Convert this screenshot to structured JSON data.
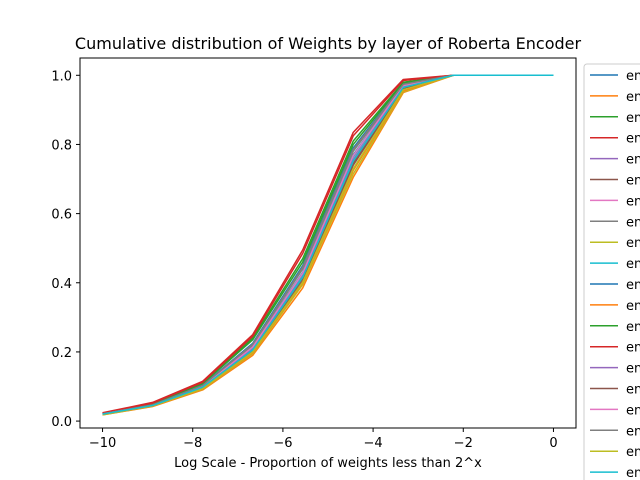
{
  "chart_data": {
    "type": "line",
    "title": "Cumulative distribution of Weights by layer of Roberta Encoder",
    "xlabel": "Log Scale - Proportion of weights less than 2^x",
    "ylabel": "",
    "xlim": [
      -10.5,
      0.5
    ],
    "ylim": [
      -0.02,
      1.05
    ],
    "xticks": [
      -10,
      -8,
      -6,
      -4,
      -2,
      0
    ],
    "yticks": [
      0.0,
      0.2,
      0.4,
      0.6,
      0.8,
      1.0
    ],
    "x": [
      -10,
      -8.89,
      -7.78,
      -6.67,
      -5.56,
      -4.44,
      -3.33,
      -2.22,
      -1.11,
      0
    ],
    "grid": false,
    "legend_position": "right (clipped)",
    "series": [
      {
        "name": "en",
        "color": "#1f77b4",
        "values": [
          0.02,
          0.046,
          0.1,
          0.215,
          0.43,
          0.77,
          0.97,
          1.0,
          1.0,
          1.0
        ]
      },
      {
        "name": "en",
        "color": "#ff7f0e",
        "values": [
          0.018,
          0.042,
          0.09,
          0.19,
          0.385,
          0.705,
          0.95,
          1.0,
          1.0,
          1.0
        ]
      },
      {
        "name": "en",
        "color": "#2ca02c",
        "values": [
          0.022,
          0.05,
          0.11,
          0.24,
          0.47,
          0.81,
          0.98,
          1.0,
          1.0,
          1.0
        ]
      },
      {
        "name": "en",
        "color": "#d62728",
        "values": [
          0.024,
          0.054,
          0.115,
          0.25,
          0.495,
          0.835,
          0.988,
          1.0,
          1.0,
          1.0
        ]
      },
      {
        "name": "en",
        "color": "#9467bd",
        "values": [
          0.02,
          0.045,
          0.097,
          0.205,
          0.415,
          0.75,
          0.965,
          1.0,
          1.0,
          1.0
        ]
      },
      {
        "name": "en",
        "color": "#8c564b",
        "values": [
          0.019,
          0.044,
          0.095,
          0.2,
          0.405,
          0.74,
          0.962,
          1.0,
          1.0,
          1.0
        ]
      },
      {
        "name": "en",
        "color": "#e377c2",
        "values": [
          0.02,
          0.045,
          0.098,
          0.21,
          0.42,
          0.76,
          0.968,
          1.0,
          1.0,
          1.0
        ]
      },
      {
        "name": "en",
        "color": "#7f7f7f",
        "values": [
          0.021,
          0.047,
          0.102,
          0.22,
          0.44,
          0.78,
          0.972,
          1.0,
          1.0,
          1.0
        ]
      },
      {
        "name": "en",
        "color": "#bcbd22",
        "values": [
          0.018,
          0.043,
          0.092,
          0.195,
          0.395,
          0.715,
          0.952,
          1.0,
          1.0,
          1.0
        ]
      },
      {
        "name": "en",
        "color": "#17becf",
        "values": [
          0.02,
          0.046,
          0.1,
          0.212,
          0.425,
          0.765,
          0.969,
          1.0,
          1.0,
          1.0
        ]
      },
      {
        "name": "en",
        "color": "#1f77b4",
        "values": [
          0.021,
          0.048,
          0.104,
          0.225,
          0.45,
          0.79,
          0.975,
          1.0,
          1.0,
          1.0
        ]
      },
      {
        "name": "en",
        "color": "#ff7f0e",
        "values": [
          0.019,
          0.043,
          0.093,
          0.198,
          0.4,
          0.725,
          0.955,
          1.0,
          1.0,
          1.0
        ]
      },
      {
        "name": "en",
        "color": "#2ca02c",
        "values": [
          0.022,
          0.049,
          0.108,
          0.235,
          0.46,
          0.8,
          0.978,
          1.0,
          1.0,
          1.0
        ]
      },
      {
        "name": "en",
        "color": "#d62728",
        "values": [
          0.023,
          0.052,
          0.112,
          0.245,
          0.485,
          0.825,
          0.985,
          1.0,
          1.0,
          1.0
        ]
      },
      {
        "name": "en",
        "color": "#9467bd",
        "values": [
          0.02,
          0.046,
          0.099,
          0.208,
          0.418,
          0.755,
          0.966,
          1.0,
          1.0,
          1.0
        ]
      },
      {
        "name": "en",
        "color": "#8c564b",
        "values": [
          0.02,
          0.045,
          0.097,
          0.204,
          0.412,
          0.745,
          0.964,
          1.0,
          1.0,
          1.0
        ]
      },
      {
        "name": "en",
        "color": "#e377c2",
        "values": [
          0.021,
          0.046,
          0.1,
          0.214,
          0.428,
          0.768,
          0.97,
          1.0,
          1.0,
          1.0
        ]
      },
      {
        "name": "en",
        "color": "#7f7f7f",
        "values": [
          0.021,
          0.047,
          0.103,
          0.222,
          0.445,
          0.785,
          0.974,
          1.0,
          1.0,
          1.0
        ]
      },
      {
        "name": "en",
        "color": "#bcbd22",
        "values": [
          0.019,
          0.044,
          0.094,
          0.2,
          0.402,
          0.73,
          0.958,
          1.0,
          1.0,
          1.0
        ]
      },
      {
        "name": "en",
        "color": "#17becf",
        "values": [
          0.02,
          0.045,
          0.098,
          0.206,
          0.416,
          0.752,
          0.965,
          1.0,
          1.0,
          1.0
        ]
      }
    ]
  }
}
